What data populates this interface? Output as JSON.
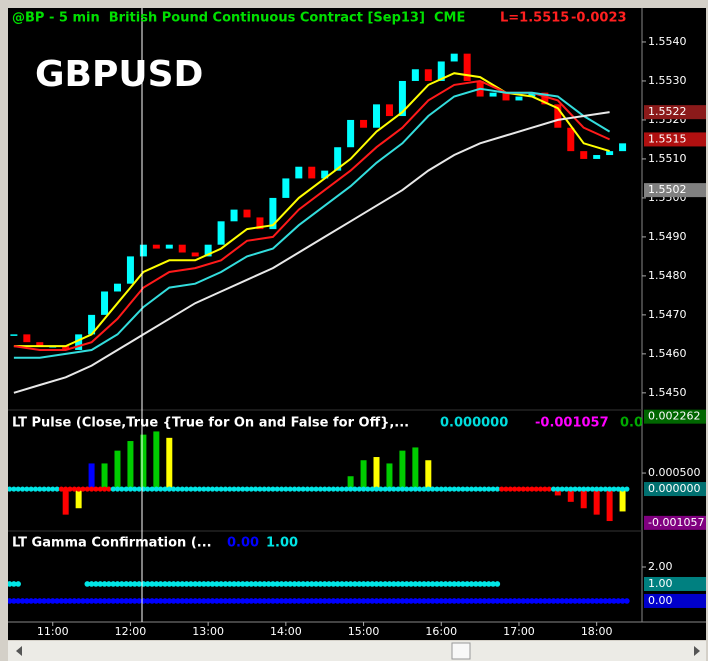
{
  "chart_data": [
    {
      "type": "candlestick",
      "title": "@BP - 5 min  British Pound Continuous Contract [Sep13]  CME",
      "last_label": "L=1.5515",
      "change": "-0.0023",
      "symbol": "GBPUSD",
      "x": [
        630,
        640,
        650,
        660,
        670,
        680,
        690,
        700,
        710,
        720,
        730,
        740,
        750,
        760,
        770,
        780,
        790,
        800,
        810,
        820,
        830,
        840,
        850,
        860,
        870,
        880,
        890,
        900,
        910,
        920,
        930,
        940,
        950,
        960,
        970,
        980,
        990,
        1000,
        1010,
        1020,
        1030,
        1040,
        1050,
        1060,
        1070,
        1080,
        1090,
        1100
      ],
      "values": [
        1.5465,
        1.5463,
        1.5462,
        1.5462,
        1.5461,
        1.5465,
        1.547,
        1.5476,
        1.5478,
        1.5485,
        1.5488,
        1.5487,
        1.5488,
        1.5486,
        1.5485,
        1.5488,
        1.5494,
        1.5497,
        1.5495,
        1.5492,
        1.55,
        1.5505,
        1.5508,
        1.5505,
        1.5507,
        1.5513,
        1.552,
        1.5518,
        1.5524,
        1.5521,
        1.553,
        1.5533,
        1.553,
        1.5535,
        1.5537,
        1.553,
        1.5526,
        1.5527,
        1.5525,
        1.5526,
        1.5527,
        1.5524,
        1.5518,
        1.5512,
        1.551,
        1.5511,
        1.5512,
        1.5514
      ],
      "up_color": "#00ffff",
      "down_color": "#ff0000",
      "lines": [
        {
          "color": "#ffff00",
          "x": [
            630,
            650,
            670,
            690,
            710,
            730,
            750,
            770,
            790,
            810,
            830,
            850,
            870,
            890,
            910,
            930,
            950,
            970,
            990,
            1010,
            1030,
            1050,
            1070,
            1090
          ],
          "values": [
            1.5462,
            1.5462,
            1.5462,
            1.5465,
            1.5473,
            1.5481,
            1.5484,
            1.5484,
            1.5487,
            1.5492,
            1.5493,
            1.55,
            1.5505,
            1.551,
            1.5517,
            1.5522,
            1.5529,
            1.5532,
            1.5531,
            1.5527,
            1.5526,
            1.5523,
            1.5514,
            1.5512
          ]
        },
        {
          "color": "#ff1a1a",
          "x": [
            630,
            650,
            670,
            690,
            710,
            730,
            750,
            770,
            790,
            810,
            830,
            850,
            870,
            890,
            910,
            930,
            950,
            970,
            990,
            1010,
            1030,
            1050,
            1070,
            1090
          ],
          "values": [
            1.5462,
            1.5461,
            1.5461,
            1.5463,
            1.5469,
            1.5477,
            1.5481,
            1.5482,
            1.5484,
            1.5489,
            1.549,
            1.5497,
            1.5502,
            1.5507,
            1.5513,
            1.5518,
            1.5525,
            1.5529,
            1.553,
            1.5527,
            1.5527,
            1.5525,
            1.5518,
            1.5515
          ]
        },
        {
          "color": "#33dddd",
          "x": [
            630,
            650,
            670,
            690,
            710,
            730,
            750,
            770,
            790,
            810,
            830,
            850,
            870,
            890,
            910,
            930,
            950,
            970,
            990,
            1010,
            1030,
            1050,
            1070,
            1090
          ],
          "values": [
            1.5459,
            1.5459,
            1.546,
            1.5461,
            1.5465,
            1.5472,
            1.5477,
            1.5478,
            1.5481,
            1.5485,
            1.5487,
            1.5493,
            1.5498,
            1.5503,
            1.5509,
            1.5514,
            1.5521,
            1.5526,
            1.5528,
            1.5527,
            1.5527,
            1.5526,
            1.5521,
            1.5517
          ]
        },
        {
          "color": "#e8e8e8",
          "x": [
            630,
            650,
            670,
            690,
            710,
            730,
            750,
            770,
            790,
            810,
            830,
            850,
            870,
            890,
            910,
            930,
            950,
            970,
            990,
            1010,
            1030,
            1050,
            1070,
            1090
          ],
          "values": [
            1.545,
            1.5452,
            1.5454,
            1.5457,
            1.5461,
            1.5465,
            1.5469,
            1.5473,
            1.5476,
            1.5479,
            1.5482,
            1.5486,
            1.549,
            1.5494,
            1.5498,
            1.5502,
            1.5507,
            1.5511,
            1.5514,
            1.5516,
            1.5518,
            1.552,
            1.5521,
            1.5522
          ]
        }
      ],
      "xlim": [
        627,
        1115
      ],
      "ylim": [
        1.54456,
        1.55482
      ],
      "yticks": [
        {
          "value": 1.545,
          "label": "1.5450"
        },
        {
          "value": 1.546,
          "label": "1.5460"
        },
        {
          "value": 1.547,
          "label": "1.5470"
        },
        {
          "value": 1.548,
          "label": "1.5480"
        },
        {
          "value": 1.549,
          "label": "1.5490"
        },
        {
          "value": 1.55,
          "label": "1.5500"
        },
        {
          "value": 1.551,
          "label": "1.5510"
        },
        {
          "value": 1.552,
          "label": "1.5520"
        },
        {
          "value": 1.553,
          "label": "1.5530"
        },
        {
          "value": 1.554,
          "label": "1.5540"
        }
      ],
      "price_labels": [
        {
          "value": 1.5522,
          "color": "#8b1a1a"
        },
        {
          "value": 1.5515,
          "color": "#b01010"
        },
        {
          "value": 1.5502,
          "color": "#808080"
        }
      ]
    },
    {
      "type": "bar",
      "title": "LT Pulse (Close,True {True for On and False for Off},...",
      "readouts": [
        {
          "value": 0,
          "label": "0.000000",
          "color": "#00dddd"
        },
        {
          "value": -0.001057,
          "label": "-0.001057",
          "color": "#ff00ff"
        },
        {
          "value": 0.002262,
          "label": "0.002262",
          "color": "#00aa00"
        }
      ],
      "x": [
        630,
        640,
        650,
        660,
        670,
        680,
        690,
        700,
        710,
        720,
        730,
        740,
        750,
        760,
        770,
        780,
        790,
        800,
        810,
        820,
        830,
        840,
        850,
        860,
        870,
        880,
        890,
        900,
        910,
        920,
        930,
        940,
        950,
        960,
        970,
        980,
        990,
        1000,
        1010,
        1020,
        1030,
        1040,
        1050,
        1060,
        1070,
        1080,
        1090,
        1100
      ],
      "values": [
        0,
        0,
        0,
        0,
        -0.0008,
        -0.0006,
        0.0008,
        0.0008,
        0.0012,
        0.0015,
        0.0017,
        0.0018,
        0.0016,
        0,
        0,
        0,
        0,
        0,
        0,
        0,
        0,
        0,
        0,
        0,
        0,
        0,
        0.0004,
        0.0009,
        0.001,
        0.0008,
        0.0012,
        0.0013,
        0.0009,
        0,
        0,
        0,
        0,
        0,
        0,
        0,
        0,
        0,
        -0.0002,
        -0.0004,
        -0.0006,
        -0.0008,
        -0.001,
        -0.0007
      ],
      "colors": [
        "#00cc00",
        "#00cc00",
        "#00cc00",
        "#00cc00",
        "#ff0000",
        "#ffff00",
        "#0000ff",
        "#00cc00",
        "#00cc00",
        "#00cc00",
        "#00cc00",
        "#00cc00",
        "#ffff00",
        "#00cc00",
        "#00cc00",
        "#00cc00",
        "#00cc00",
        "#00cc00",
        "#00cc00",
        "#00cc00",
        "#00cc00",
        "#00cc00",
        "#00cc00",
        "#00cc00",
        "#00cc00",
        "#00cc00",
        "#00cc00",
        "#00cc00",
        "#ffff00",
        "#00cc00",
        "#00cc00",
        "#00cc00",
        "#ffff00",
        "#00cc00",
        "#00cc00",
        "#00cc00",
        "#00cc00",
        "#00cc00",
        "#00cc00",
        "#00cc00",
        "#00cc00",
        "#00cc00",
        "#ff0000",
        "#ff0000",
        "#ff0000",
        "#ff0000",
        "#ff0000",
        "#ffff00"
      ],
      "dot_colors": [
        "#00e5e5",
        "#00e5e5",
        "#00e5e5",
        "#00e5e5",
        "#ff0000",
        "#ff0000",
        "#ff0000",
        "#ff0000",
        "#00e5e5",
        "#00e5e5",
        "#00e5e5",
        "#00e5e5",
        "#00e5e5",
        "#00e5e5",
        "#00e5e5",
        "#00e5e5",
        "#00e5e5",
        "#00e5e5",
        "#00e5e5",
        "#00e5e5",
        "#00e5e5",
        "#00e5e5",
        "#00e5e5",
        "#00e5e5",
        "#00e5e5",
        "#00e5e5",
        "#00e5e5",
        "#00e5e5",
        "#00e5e5",
        "#00e5e5",
        "#00e5e5",
        "#00e5e5",
        "#00e5e5",
        "#00e5e5",
        "#00e5e5",
        "#00e5e5",
        "#00e5e5",
        "#00e5e5",
        "#ff0000",
        "#ff0000",
        "#ff0000",
        "#ff0000",
        "#00e5e5",
        "#00e5e5",
        "#00e5e5",
        "#00e5e5",
        "#00e5e5",
        "#00e5e5"
      ],
      "xlim": [
        627,
        1115
      ],
      "ylim": [
        -0.00128,
        0.00247
      ],
      "yticks": [
        {
          "value": 0.0005,
          "label": "0.000500"
        }
      ],
      "price_labels": [
        {
          "value": 0.002262,
          "label": "0.002262",
          "color": "#006600"
        },
        {
          "value": 0,
          "label": "0.000000",
          "color": "#007070"
        },
        {
          "value": -0.001057,
          "label": "-0.001057",
          "color": "#800080"
        }
      ]
    },
    {
      "type": "dots",
      "title": "LT Gamma Confirmation (...",
      "readouts": [
        {
          "value": 0,
          "label": "0.00",
          "color": "#0000ff"
        },
        {
          "value": 1,
          "label": "1.00",
          "color": "#00e5e5"
        }
      ],
      "x": [
        630,
        640,
        650,
        660,
        670,
        680,
        690,
        700,
        710,
        720,
        730,
        740,
        750,
        760,
        770,
        780,
        790,
        800,
        810,
        820,
        830,
        840,
        850,
        860,
        870,
        880,
        890,
        900,
        910,
        920,
        930,
        940,
        950,
        960,
        970,
        980,
        990,
        1000,
        1010,
        1020,
        1030,
        1040,
        1050,
        1060,
        1070,
        1080,
        1090,
        1100
      ],
      "series": [
        {
          "color": "#00e5e5",
          "values": [
            1,
            null,
            null,
            null,
            null,
            null,
            1,
            1,
            1,
            1,
            1,
            1,
            1,
            1,
            1,
            1,
            1,
            1,
            1,
            1,
            1,
            1,
            1,
            1,
            1,
            1,
            1,
            1,
            1,
            1,
            1,
            1,
            1,
            1,
            1,
            1,
            1,
            1,
            null,
            null,
            null,
            null,
            null,
            null,
            null,
            null,
            null,
            null
          ]
        },
        {
          "color": "#0000ff",
          "values": [
            0,
            0,
            0,
            0,
            0,
            0,
            0,
            0,
            0,
            0,
            0,
            0,
            0,
            0,
            0,
            0,
            0,
            0,
            0,
            0,
            0,
            0,
            0,
            0,
            0,
            0,
            0,
            0,
            0,
            0,
            0,
            0,
            0,
            0,
            0,
            0,
            0,
            0,
            0,
            0,
            0,
            0,
            0,
            0,
            0,
            0,
            0,
            0
          ]
        }
      ],
      "xlim": [
        627,
        1115
      ],
      "ylim": [
        -1.12,
        4.06
      ],
      "yticks": [
        {
          "value": 2,
          "label": "2.00"
        }
      ],
      "xticks": [
        {
          "value": 660,
          "label": "11:00"
        },
        {
          "value": 720,
          "label": "12:00"
        },
        {
          "value": 780,
          "label": "13:00"
        },
        {
          "value": 840,
          "label": "14:00"
        },
        {
          "value": 900,
          "label": "15:00"
        },
        {
          "value": 960,
          "label": "16:00"
        },
        {
          "value": 1020,
          "label": "17:00"
        },
        {
          "value": 1080,
          "label": "18:00"
        }
      ],
      "price_labels": [
        {
          "value": 1,
          "label": "1.00",
          "color": "#008080"
        },
        {
          "value": 0,
          "label": "0.00",
          "color": "#0000cc"
        }
      ]
    }
  ]
}
